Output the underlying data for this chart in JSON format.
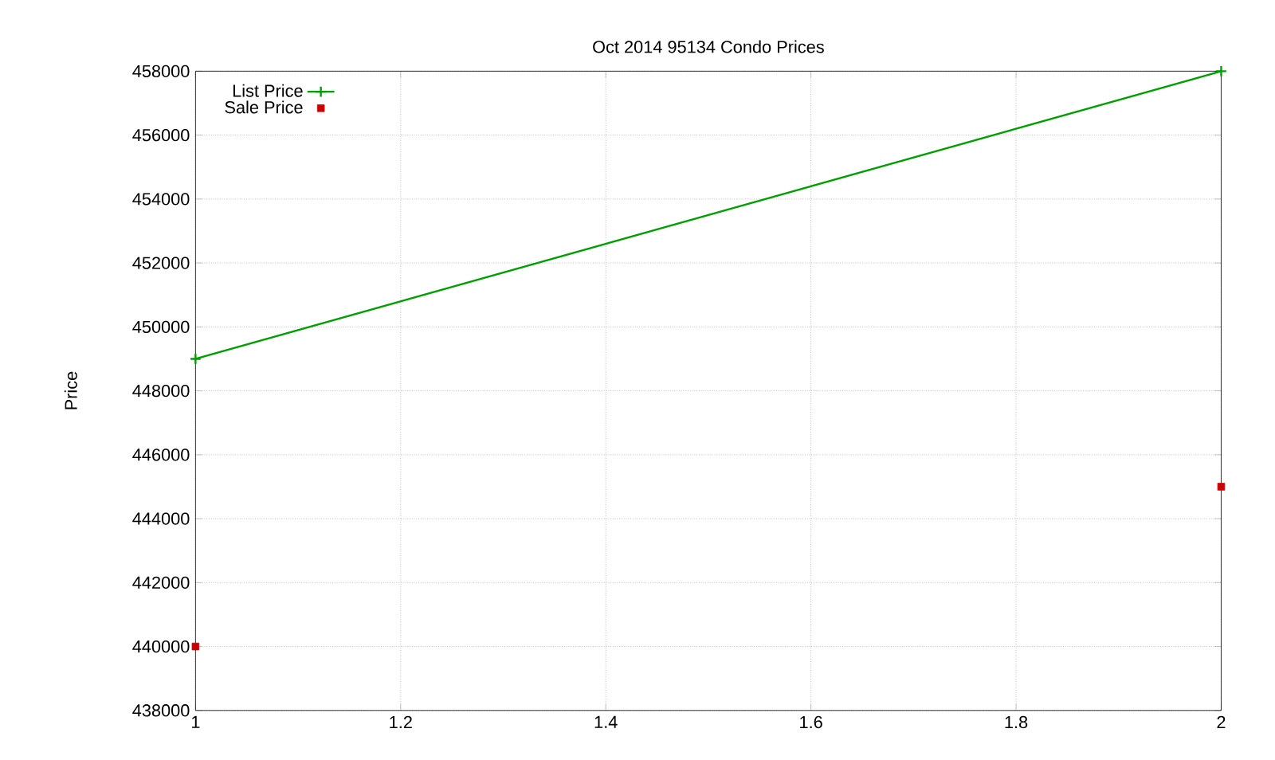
{
  "chart_data": {
    "type": "line",
    "title": "Oct 2014 95134 Condo Prices",
    "ylabel": "Price",
    "x": [
      1,
      2
    ],
    "series": [
      {
        "name": "List Price",
        "color": "#00a000",
        "marker": "cross",
        "values": [
          449000,
          458000
        ]
      },
      {
        "name": "Sale Price",
        "type": "scatter",
        "color": "#cc0000",
        "marker": "square",
        "values": [
          440000,
          445000
        ]
      }
    ],
    "xlim": [
      1,
      2
    ],
    "xticks": [
      1,
      1.2,
      1.4,
      1.6,
      1.8,
      2
    ],
    "ylim": [
      438000,
      458000
    ],
    "yticks": [
      438000,
      440000,
      442000,
      444000,
      446000,
      448000,
      450000,
      452000,
      454000,
      456000,
      458000
    ],
    "grid": true,
    "legend": "top left"
  }
}
